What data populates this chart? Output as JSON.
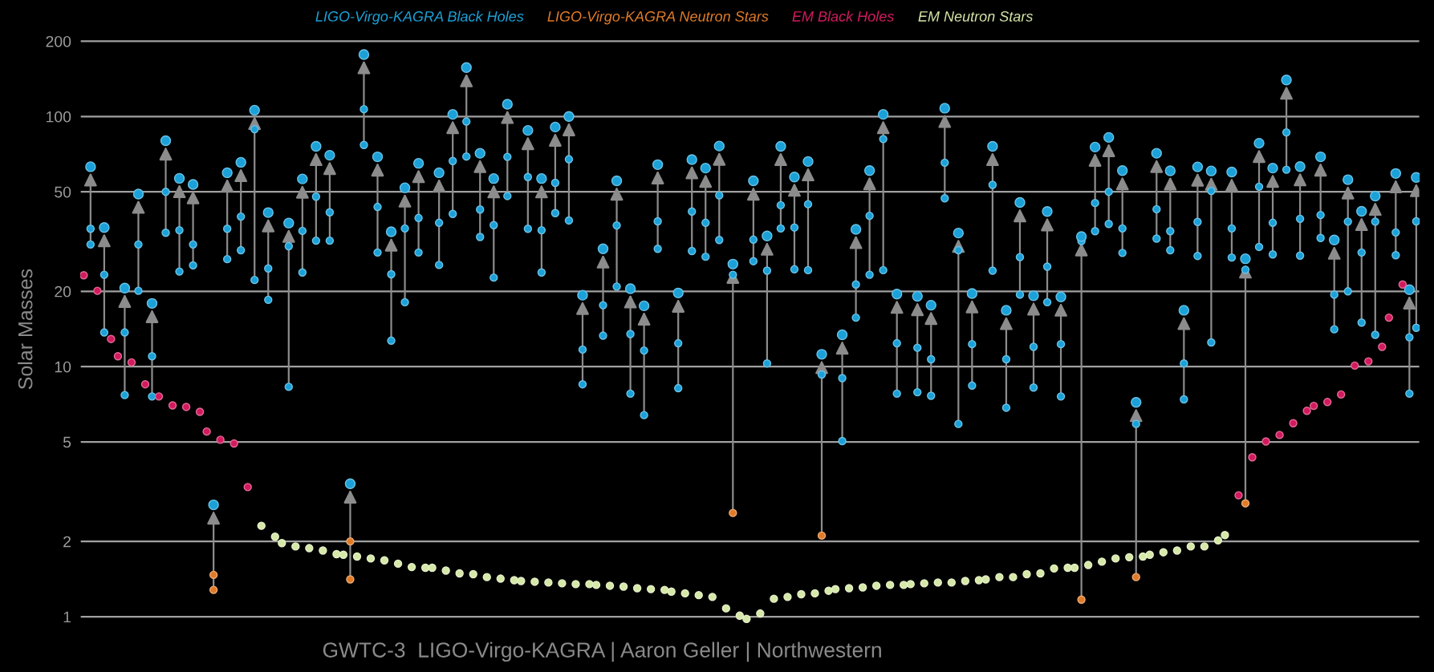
{
  "chart_data": {
    "type": "scatter",
    "ylabel": "Solar Masses",
    "annotations": [
      "GWTC-3  LIGO-Virgo-KAGRA | Aaron Geller | Northwestern"
    ],
    "log": "y",
    "grid": "y",
    "legend": "top",
    "tick_labels": "y",
    "marker": "circle",
    "ylim": [
      0.85,
      234
    ],
    "yticks": [
      1,
      2,
      5,
      10,
      20,
      50,
      100,
      200
    ],
    "categories": [
      null,
      null,
      null,
      null,
      null,
      null,
      null,
      null,
      null,
      null,
      null,
      null,
      null,
      null,
      null,
      null,
      null,
      null,
      null,
      null,
      null,
      null,
      null,
      null,
      null,
      null,
      null,
      null,
      null,
      null,
      null,
      null,
      null,
      null,
      null,
      null,
      null,
      null,
      null,
      null,
      null,
      null,
      null,
      null,
      null,
      null,
      null,
      null,
      null,
      null,
      null,
      null,
      null,
      null,
      null,
      null,
      null,
      null,
      null,
      null,
      null,
      null,
      null,
      null,
      null,
      null,
      null,
      null,
      null,
      null,
      null,
      null,
      null,
      null,
      null,
      null,
      null,
      null,
      null,
      null,
      null,
      null,
      null,
      null,
      null,
      null,
      null,
      null,
      null,
      null,
      null,
      null,
      null,
      null,
      null,
      null,
      null,
      null,
      null,
      null,
      null,
      null,
      null,
      null,
      null,
      null,
      null,
      null,
      null,
      null,
      null,
      null,
      null,
      null,
      null,
      null,
      null,
      null,
      null,
      null,
      null,
      null,
      null,
      null,
      null,
      null,
      null,
      null,
      null,
      null,
      null,
      null,
      null,
      null,
      null,
      null,
      null,
      null,
      null,
      null,
      null,
      null,
      null,
      null,
      null,
      null,
      null,
      null,
      null,
      null,
      null,
      null,
      null,
      null,
      null,
      null,
      null,
      null,
      null,
      null,
      null,
      null,
      null,
      null,
      null,
      null,
      null,
      null,
      null,
      null,
      null,
      null,
      null,
      null,
      null,
      null,
      null,
      null,
      null,
      null,
      null,
      null,
      null,
      null,
      null,
      null,
      null,
      null,
      null,
      null,
      null,
      null,
      null,
      null,
      null,
      null
    ],
    "series": [
      {
        "name": "LIGO-Virgo-KAGRA Black Holes",
        "color": "#1ba1d8",
        "values": [
          null,
          35.6,
          null,
          23.3,
          null,
          null,
          13.7,
          null,
          30.8,
          null,
          11.0,
          null,
          50,
          null,
          35.1,
          null,
          30.8,
          null,
          null,
          null,
          null,
          35.6,
          null,
          39.8,
          null,
          89,
          null,
          24.7,
          null,
          null,
          30.3,
          null,
          34.9,
          null,
          47.8,
          null,
          41.4,
          null,
          null,
          null,
          null,
          107,
          null,
          43.5,
          null,
          23.4,
          null,
          35.7,
          null,
          39.3,
          null,
          null,
          37.6,
          null,
          66.4,
          null,
          95.5,
          null,
          42.5,
          null,
          36.8,
          null,
          69,
          null,
          null,
          57.3,
          null,
          35.1,
          null,
          54.3,
          null,
          67.5,
          null,
          11.7,
          null,
          null,
          17.6,
          null,
          36.7,
          null,
          13.5,
          null,
          11.6,
          null,
          38.1,
          null,
          null,
          12.4,
          null,
          41.7,
          null,
          37.6,
          null,
          48.4,
          null,
          23.3,
          null,
          null,
          32.2,
          null,
          24.2,
          null,
          44.2,
          null,
          36,
          null,
          44.6,
          null,
          9.3,
          null,
          null,
          9.0,
          null,
          21.3,
          null,
          40.1,
          null,
          81.3,
          null,
          12.4,
          null,
          null,
          11.9,
          null,
          10.7,
          null,
          65.4,
          null,
          29.2,
          null,
          12.3,
          null,
          null,
          53.3,
          null,
          10.7,
          null,
          27.4,
          null,
          12.0,
          null,
          25.1,
          null,
          12.3,
          null,
          null,
          31.8,
          null,
          45.1,
          null,
          50,
          null,
          35.7,
          null,
          5.9,
          null,
          null,
          42.6,
          null,
          34.8,
          null,
          10.3,
          null,
          37.9,
          null,
          50.4,
          null,
          null,
          35.7,
          null,
          24.4,
          null,
          52.4,
          null,
          37.6,
          null,
          86.4,
          null,
          39,
          null,
          null,
          40.4,
          null,
          19.4,
          null,
          38.0,
          null,
          28.6,
          null,
          38,
          null,
          null,
          34.4,
          null,
          13.1,
          38.1
        ]
      },
      {
        "color": "#1ba1d8",
        "values": [
          null,
          30.8,
          null,
          13.7,
          null,
          null,
          7.7,
          null,
          20.1,
          null,
          7.6,
          null,
          34.3,
          null,
          24,
          null,
          25.4,
          null,
          null,
          null,
          null,
          26.9,
          null,
          29.2,
          null,
          22.2,
          null,
          18.5,
          null,
          null,
          8.3,
          null,
          23.8,
          null,
          31.9,
          null,
          31.9,
          null,
          null,
          null,
          null,
          77,
          null,
          28.6,
          null,
          12.7,
          null,
          18.1,
          null,
          28.6,
          null,
          null,
          25.5,
          null,
          40.8,
          null,
          69.2,
          null,
          33,
          null,
          22.7,
          null,
          48.1,
          null,
          null,
          35.6,
          null,
          23.8,
          null,
          41.1,
          null,
          38.4,
          null,
          8.5,
          null,
          null,
          13.3,
          null,
          20.9,
          null,
          7.8,
          null,
          6.4,
          null,
          29.6,
          null,
          null,
          8.2,
          null,
          29,
          null,
          27.5,
          null,
          32.1,
          null,
          null,
          null,
          null,
          26.4,
          null,
          10.3,
          null,
          35.7,
          null,
          24.5,
          null,
          24.3,
          null,
          null,
          null,
          null,
          5.04,
          null,
          15.7,
          null,
          23.3,
          null,
          24.3,
          null,
          7.8,
          null,
          null,
          7.9,
          null,
          7.65,
          null,
          47.1,
          null,
          5.9,
          null,
          8.4,
          null,
          null,
          24.2,
          null,
          6.85,
          null,
          19.4,
          null,
          8.25,
          null,
          18.1,
          null,
          7.6,
          null,
          null,
          null,
          null,
          34.8,
          null,
          37.2,
          null,
          28.5,
          null,
          null,
          null,
          null,
          32.5,
          null,
          29.2,
          null,
          7.4,
          null,
          27.7,
          null,
          12.5,
          null,
          null,
          27.3,
          null,
          null,
          null,
          30.1,
          null,
          28.1,
          null,
          61.3,
          null,
          27.8,
          null,
          null,
          32.7,
          null,
          14.1,
          null,
          20.0,
          null,
          15.0,
          null,
          13.4,
          null,
          null,
          27.9,
          null,
          7.8,
          14.3
        ]
      },
      {
        "color": "#1ba1d8",
        "values": [
          null,
          63,
          null,
          36,
          null,
          null,
          20.6,
          null,
          49,
          null,
          17.9,
          null,
          80,
          null,
          56.6,
          null,
          53.5,
          null,
          null,
          2.8,
          null,
          59.6,
          null,
          65.6,
          null,
          106,
          null,
          41.3,
          null,
          null,
          37.5,
          null,
          56.3,
          null,
          76,
          null,
          70,
          null,
          null,
          3.4,
          null,
          177,
          null,
          69,
          null,
          34.6,
          null,
          51.9,
          null,
          65,
          null,
          null,
          59.6,
          null,
          102,
          null,
          157,
          null,
          71.3,
          null,
          56.5,
          null,
          112,
          null,
          null,
          88,
          null,
          56.5,
          null,
          90.8,
          null,
          100,
          null,
          19.3,
          null,
          null,
          29.6,
          null,
          55.3,
          null,
          20.5,
          null,
          17.5,
          null,
          64.2,
          null,
          null,
          19.7,
          null,
          67.3,
          null,
          62.2,
          null,
          76.2,
          null,
          25.7,
          null,
          null,
          55.3,
          null,
          33.3,
          null,
          76,
          null,
          57.3,
          null,
          66.1,
          null,
          11.2,
          null,
          null,
          13.4,
          null,
          35.4,
          null,
          60.8,
          null,
          102,
          null,
          19.5,
          null,
          null,
          19.1,
          null,
          17.6,
          null,
          108,
          null,
          34.2,
          null,
          19.6,
          null,
          null,
          76,
          null,
          16.8,
          null,
          45.3,
          null,
          19.2,
          null,
          41.7,
          null,
          19.0,
          null,
          null,
          33.1,
          null,
          75.5,
          null,
          82.5,
          null,
          60.8,
          null,
          7.2,
          null,
          null,
          71.3,
          null,
          60.7,
          null,
          16.8,
          null,
          62.9,
          null,
          60.6,
          null,
          null,
          60.0,
          null,
          27.0,
          null,
          78.2,
          null,
          62.2,
          null,
          140,
          null,
          63.1,
          null,
          null,
          69,
          null,
          32.1,
          null,
          55.9,
          null,
          41.8,
          null,
          48.1,
          null,
          null,
          59.2,
          null,
          20.3,
          57.1
        ]
      },
      {
        "name": "LIGO-Virgo-KAGRA Neutron Stars",
        "color": "#e07b28",
        "values": [
          null,
          null,
          null,
          null,
          null,
          null,
          null,
          null,
          null,
          null,
          null,
          null,
          null,
          null,
          null,
          null,
          null,
          null,
          null,
          1.47,
          null,
          null,
          null,
          null,
          null,
          null,
          null,
          null,
          null,
          null,
          null,
          null,
          null,
          null,
          null,
          null,
          null,
          null,
          null,
          2.0,
          null,
          null,
          null,
          null,
          null,
          null,
          null,
          null,
          null,
          null,
          null,
          null,
          null,
          null,
          null,
          null,
          null,
          null,
          null,
          null,
          null,
          null,
          null,
          null,
          null,
          null,
          null,
          null,
          null,
          null,
          null,
          null,
          null,
          null,
          null,
          null,
          null,
          null,
          null,
          null,
          null,
          null,
          null,
          null,
          null,
          null,
          null,
          null,
          null,
          null,
          null,
          null,
          null,
          null,
          null,
          2.6,
          null,
          null,
          null,
          null,
          null,
          null,
          null,
          null,
          null,
          null,
          null,
          null,
          2.11,
          null,
          null,
          null,
          null,
          null,
          null,
          null,
          null,
          null,
          null,
          null,
          null,
          null,
          null,
          null,
          null,
          null,
          null,
          null,
          null,
          null,
          null,
          null,
          null,
          null,
          null,
          null,
          null,
          null,
          null,
          null,
          null,
          null,
          null,
          null,
          null,
          null,
          1.17,
          null,
          null,
          null,
          null,
          null,
          null,
          null,
          1.44,
          null,
          null,
          null,
          null,
          null,
          null,
          null,
          null,
          null,
          null,
          null,
          null,
          null,
          null,
          null,
          2.84,
          null,
          null,
          null,
          null,
          null,
          null,
          null,
          null,
          null,
          null,
          null,
          null,
          null,
          null,
          null,
          null,
          null,
          null,
          null,
          null,
          null,
          null,
          null,
          null,
          null
        ]
      },
      {
        "color": "#e07b28",
        "values": [
          null,
          null,
          null,
          null,
          null,
          null,
          null,
          null,
          null,
          null,
          null,
          null,
          null,
          null,
          null,
          null,
          null,
          null,
          null,
          1.28,
          null,
          null,
          null,
          null,
          null,
          null,
          null,
          null,
          null,
          null,
          null,
          null,
          null,
          null,
          null,
          null,
          null,
          null,
          null,
          1.41,
          null,
          null,
          null,
          null,
          null,
          null,
          null,
          null,
          null,
          null,
          null,
          null,
          null,
          null,
          null,
          null,
          null,
          null,
          null,
          null,
          null,
          null,
          null,
          null,
          null,
          null,
          null,
          null,
          null,
          null,
          null,
          null,
          null,
          null,
          null,
          null,
          null,
          null,
          null,
          null,
          null,
          null,
          null,
          null,
          null,
          null,
          null,
          null,
          null,
          null,
          null,
          null,
          null,
          null,
          null,
          null,
          null,
          null,
          null,
          null,
          null,
          null,
          null,
          null,
          null,
          null,
          null,
          null,
          null,
          null,
          null,
          null,
          null,
          null,
          null,
          null,
          null,
          null,
          null,
          null,
          null,
          null,
          null,
          null,
          null,
          null,
          null,
          null,
          null,
          null,
          null,
          null,
          null,
          null,
          null,
          null,
          null,
          null,
          null,
          null,
          null,
          null,
          null,
          null,
          null,
          null,
          null,
          null,
          null,
          null,
          null,
          null,
          null,
          null,
          null,
          null,
          null,
          null,
          null,
          null,
          null,
          null,
          null,
          null,
          null,
          null,
          null,
          null,
          null,
          null,
          null,
          null,
          null,
          null,
          null,
          null,
          null,
          null,
          null,
          null,
          null,
          null,
          null,
          null,
          null,
          null,
          null,
          null,
          null,
          null,
          null,
          null,
          null,
          null,
          null,
          null
        ]
      },
      {
        "name": "EM Black Holes",
        "color": "#d21a5e",
        "values": [
          23.2,
          null,
          20.1,
          null,
          12.9,
          11.0,
          null,
          10.4,
          null,
          8.5,
          null,
          7.6,
          null,
          7.0,
          null,
          6.9,
          null,
          6.6,
          5.5,
          null,
          5.1,
          null,
          4.93,
          null,
          3.3,
          null,
          null,
          null,
          null,
          null,
          null,
          null,
          null,
          null,
          null,
          null,
          null,
          null,
          null,
          null,
          null,
          null,
          null,
          null,
          null,
          null,
          null,
          null,
          null,
          null,
          null,
          null,
          null,
          null,
          null,
          null,
          null,
          null,
          null,
          null,
          null,
          null,
          null,
          null,
          null,
          null,
          null,
          null,
          null,
          null,
          null,
          null,
          null,
          null,
          null,
          null,
          null,
          null,
          null,
          null,
          null,
          null,
          null,
          null,
          null,
          null,
          null,
          null,
          null,
          null,
          null,
          null,
          null,
          null,
          null,
          null,
          null,
          null,
          null,
          null,
          null,
          null,
          null,
          null,
          null,
          null,
          null,
          null,
          null,
          null,
          null,
          null,
          null,
          null,
          null,
          null,
          null,
          null,
          null,
          null,
          null,
          null,
          null,
          null,
          null,
          null,
          null,
          null,
          null,
          null,
          null,
          null,
          null,
          null,
          null,
          null,
          null,
          null,
          null,
          null,
          null,
          null,
          null,
          null,
          null,
          null,
          null,
          null,
          null,
          null,
          null,
          null,
          null,
          null,
          null,
          null,
          null,
          null,
          null,
          null,
          null,
          null,
          null,
          null,
          null,
          null,
          null,
          null,
          null,
          3.06,
          null,
          4.34,
          null,
          5.02,
          null,
          5.33,
          null,
          5.94,
          null,
          6.66,
          6.97,
          null,
          7.22,
          null,
          7.74,
          null,
          10.1,
          null,
          10.5,
          null,
          12.0,
          15.7,
          null,
          21.3,
          null,
          null
        ]
      },
      {
        "name": "EM Neutron Stars",
        "color": "#d6e8a8",
        "values": [
          null,
          null,
          null,
          null,
          null,
          null,
          null,
          null,
          null,
          null,
          null,
          null,
          null,
          null,
          null,
          null,
          null,
          null,
          null,
          null,
          null,
          null,
          null,
          null,
          null,
          null,
          2.31,
          null,
          2.09,
          1.97,
          null,
          1.91,
          null,
          1.88,
          null,
          1.84,
          null,
          1.78,
          1.77,
          null,
          1.74,
          null,
          1.71,
          null,
          1.68,
          null,
          1.63,
          null,
          1.58,
          null,
          1.57,
          1.57,
          null,
          1.53,
          null,
          1.49,
          null,
          1.48,
          null,
          1.44,
          null,
          1.42,
          null,
          1.4,
          1.39,
          null,
          1.38,
          null,
          1.37,
          null,
          1.36,
          null,
          1.35,
          null,
          1.35,
          1.34,
          null,
          1.33,
          null,
          1.32,
          null,
          1.3,
          null,
          1.29,
          null,
          1.28,
          1.26,
          null,
          1.24,
          null,
          1.22,
          null,
          1.2,
          null,
          1.08,
          null,
          1.01,
          0.98,
          null,
          1.03,
          null,
          1.18,
          null,
          1.2,
          null,
          1.23,
          null,
          1.24,
          null,
          1.27,
          1.29,
          null,
          1.3,
          null,
          1.31,
          null,
          1.33,
          null,
          1.34,
          null,
          1.34,
          1.35,
          null,
          1.36,
          null,
          1.37,
          null,
          1.37,
          null,
          1.39,
          null,
          1.4,
          1.41,
          null,
          1.44,
          null,
          1.44,
          null,
          1.48,
          null,
          1.49,
          null,
          1.56,
          null,
          1.57,
          1.57,
          null,
          1.61,
          null,
          1.66,
          null,
          1.71,
          null,
          1.73,
          null,
          1.74,
          1.77,
          null,
          1.81,
          null,
          1.84,
          null,
          1.91,
          null,
          1.91,
          null,
          2.02,
          2.12,
          null,
          null,
          null,
          null,
          null,
          null,
          null,
          null,
          null,
          null,
          null,
          null,
          null,
          null,
          null,
          null,
          null,
          null,
          null,
          null,
          null,
          null,
          null,
          null,
          null,
          null,
          null,
          null
        ]
      }
    ]
  }
}
